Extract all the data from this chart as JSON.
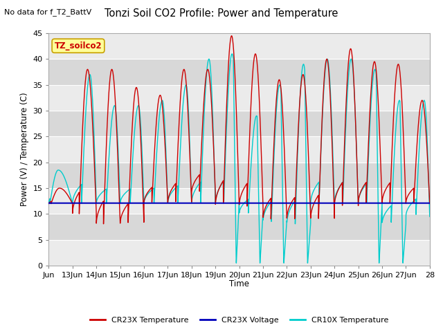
{
  "title": "Tonzi Soil CO2 Profile: Power and Temperature",
  "subtitle": "No data for f_T2_BattV",
  "ylabel": "Power (V) / Temperature (C)",
  "xlabel": "Time",
  "ylim": [
    0,
    45
  ],
  "yticks": [
    0,
    5,
    10,
    15,
    20,
    25,
    30,
    35,
    40,
    45
  ],
  "xtick_labels": [
    "Jun",
    "13Jun",
    "14Jun",
    "15Jun",
    "16Jun",
    "17Jun",
    "18Jun",
    "19Jun",
    "20Jun",
    "21Jun",
    "22Jun",
    "23Jun",
    "24Jun",
    "25Jun",
    "26Jun",
    "27Jun",
    "28"
  ],
  "plot_bg_light": "#ebebeb",
  "plot_bg_dark": "#d8d8d8",
  "fig_bg_color": "#ffffff",
  "grid_color": "#ffffff",
  "cr23x_temp_color": "#cc0000",
  "cr23x_volt_color": "#0000bb",
  "cr10x_temp_color": "#00cccc",
  "inset_label": "TZ_soilco2",
  "legend_box_color": "#ffff99",
  "legend_box_border": "#c8a000",
  "voltage_level": 12.1,
  "cr23x_peaks": [
    15,
    38,
    38,
    34.5,
    33,
    38,
    38,
    44.5,
    41,
    36,
    37,
    40,
    42,
    39.5,
    39,
    32
  ],
  "cr23x_mins": [
    12,
    10,
    8,
    8,
    12,
    12,
    14,
    11.5,
    11.5,
    9,
    9,
    9,
    11.5,
    12,
    12,
    12
  ],
  "cr23x_rise": [
    0.1,
    0.28,
    0.3,
    0.33,
    0.33,
    0.33,
    0.33,
    0.33,
    0.33,
    0.33,
    0.33,
    0.33,
    0.33,
    0.33,
    0.33,
    0.33
  ],
  "cr10x_peaks": [
    18.5,
    37,
    31,
    31,
    32,
    35,
    40,
    41,
    29,
    35,
    39,
    40,
    40,
    38,
    32,
    32
  ],
  "cr10x_mins": [
    12,
    12,
    12,
    12,
    12,
    12,
    12,
    12,
    10,
    8.5,
    8,
    12,
    12,
    12,
    8,
    9.5
  ],
  "cr10x_rise": [
    0.05,
    0.38,
    0.42,
    0.42,
    0.42,
    0.42,
    0.38,
    0.35,
    0.38,
    0.35,
    0.35,
    0.35,
    0.35,
    0.35,
    0.38,
    0.42
  ],
  "cr10x_dip_days": [
    7,
    8,
    9,
    10,
    13,
    14
  ],
  "num_days": 16
}
